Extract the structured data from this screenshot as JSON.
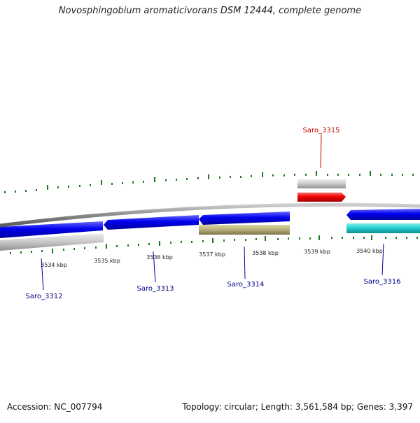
{
  "header": {
    "title": "Novosphingobium aromaticivorans DSM 12444, complete genome"
  },
  "footer": {
    "accession": "Accession: NC_007794",
    "summary": "Topology: circular; Length: 3,561,584 bp; Genes: 3,397"
  },
  "scale": {
    "tick_labels": [
      "3534 kbp",
      "3535 kbp",
      "3536 kbp",
      "3537 kbp",
      "3538 kbp",
      "3539 kbp",
      "3540 kbp"
    ],
    "tick_color": "#1a7a1a"
  },
  "genes": [
    {
      "label": "Saro_3312",
      "color": "#00008b"
    },
    {
      "label": "Saro_3313",
      "color": "#00008b"
    },
    {
      "label": "Saro_3314",
      "color": "#00008b"
    },
    {
      "label": "Saro_3315",
      "color": "#c00000"
    },
    {
      "label": "Saro_3316",
      "color": "#00008b"
    }
  ],
  "colors": {
    "backbone": "#8a8a8a",
    "cds": "#0000ee",
    "gene_track": "#c8c8c8",
    "rna": "#ee0000",
    "misc_feature": "#b8b07a",
    "repeat": "#22cccc"
  }
}
